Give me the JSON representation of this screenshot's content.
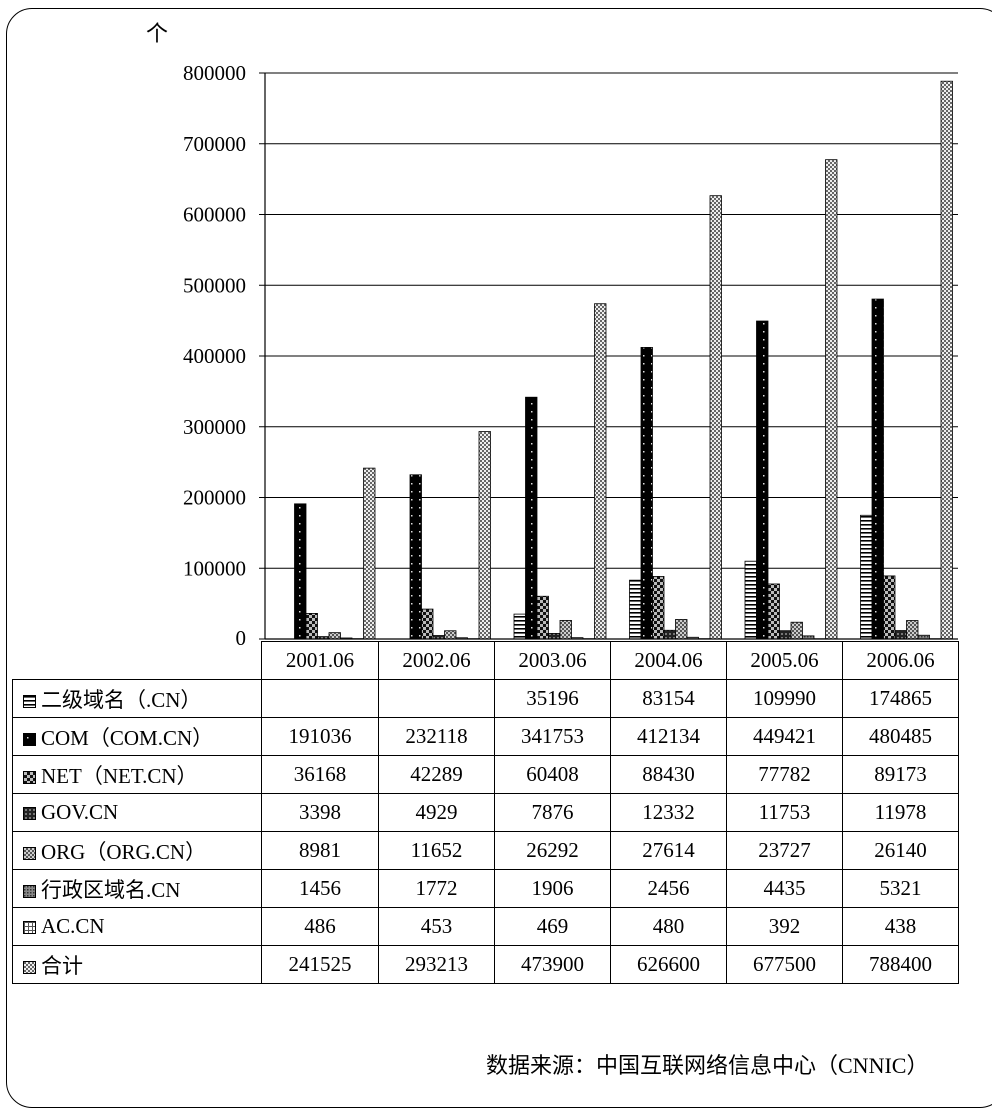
{
  "chart_data": {
    "type": "bar",
    "ylabel": "个",
    "ylim": [
      0,
      800000
    ],
    "yticks": [
      "0",
      "100000",
      "200000",
      "300000",
      "400000",
      "500000",
      "600000",
      "700000",
      "800000"
    ],
    "grid": true,
    "categories": [
      "2001.06",
      "2002.06",
      "2003.06",
      "2004.06",
      "2005.06",
      "2006.06"
    ],
    "series": [
      {
        "name": "二级域名（.CN）",
        "pattern": "hstripe",
        "values": [
          null,
          null,
          35196,
          83154,
          109990,
          174865
        ]
      },
      {
        "name": "COM（COM.CN）",
        "pattern": "dark-dots",
        "values": [
          191036,
          232118,
          341753,
          412134,
          449421,
          480485
        ]
      },
      {
        "name": "NET（NET.CN）",
        "pattern": "dark-check",
        "values": [
          36168,
          42289,
          60408,
          88430,
          77782,
          89173
        ]
      },
      {
        "name": "GOV.CN",
        "pattern": "dark-grid",
        "values": [
          3398,
          4929,
          7876,
          12332,
          11753,
          11978
        ]
      },
      {
        "name": "ORG（ORG.CN）",
        "pattern": "mid-check",
        "values": [
          8981,
          11652,
          26292,
          27614,
          23727,
          26140
        ]
      },
      {
        "name": "行政区域名.CN",
        "pattern": "gray-dots",
        "values": [
          1456,
          1772,
          1906,
          2456,
          4435,
          5321
        ]
      },
      {
        "name": "AC.CN",
        "pattern": "light-grid",
        "values": [
          486,
          453,
          469,
          480,
          392,
          438
        ]
      },
      {
        "name": "合计",
        "pattern": "light-check",
        "values": [
          241525,
          293213,
          473900,
          626600,
          677500,
          788400
        ]
      }
    ],
    "table_rows": [
      {
        "label": "二级域名（.CN）",
        "cells": [
          "",
          "",
          "35196",
          "83154",
          "109990",
          "174865"
        ]
      },
      {
        "label": "COM（COM.CN）",
        "cells": [
          "191036",
          "232118",
          "341753",
          "412134",
          "449421",
          "480485"
        ]
      },
      {
        "label": "NET（NET.CN）",
        "cells": [
          "36168",
          "42289",
          "60408",
          "88430",
          "77782",
          "89173"
        ]
      },
      {
        "label": "GOV.CN",
        "cells": [
          "3398",
          "4929",
          "7876",
          "12332",
          "11753",
          "11978"
        ]
      },
      {
        "label": "ORG（ORG.CN）",
        "cells": [
          "8981",
          "11652",
          "26292",
          "27614",
          "23727",
          "26140"
        ]
      },
      {
        "label": "行政区域名.CN",
        "cells": [
          "1456",
          "1772",
          "1906",
          "2456",
          "4435",
          "5321"
        ]
      },
      {
        "label": "AC.CN",
        "cells": [
          "486",
          "453",
          "469",
          "480",
          "392",
          "438"
        ]
      },
      {
        "label": "合计",
        "cells": [
          "241525",
          "293213",
          "473900",
          "626600",
          "677500",
          "788400"
        ]
      }
    ],
    "annotation": "数据来源：中国互联网络信息中心（CNNIC）"
  }
}
